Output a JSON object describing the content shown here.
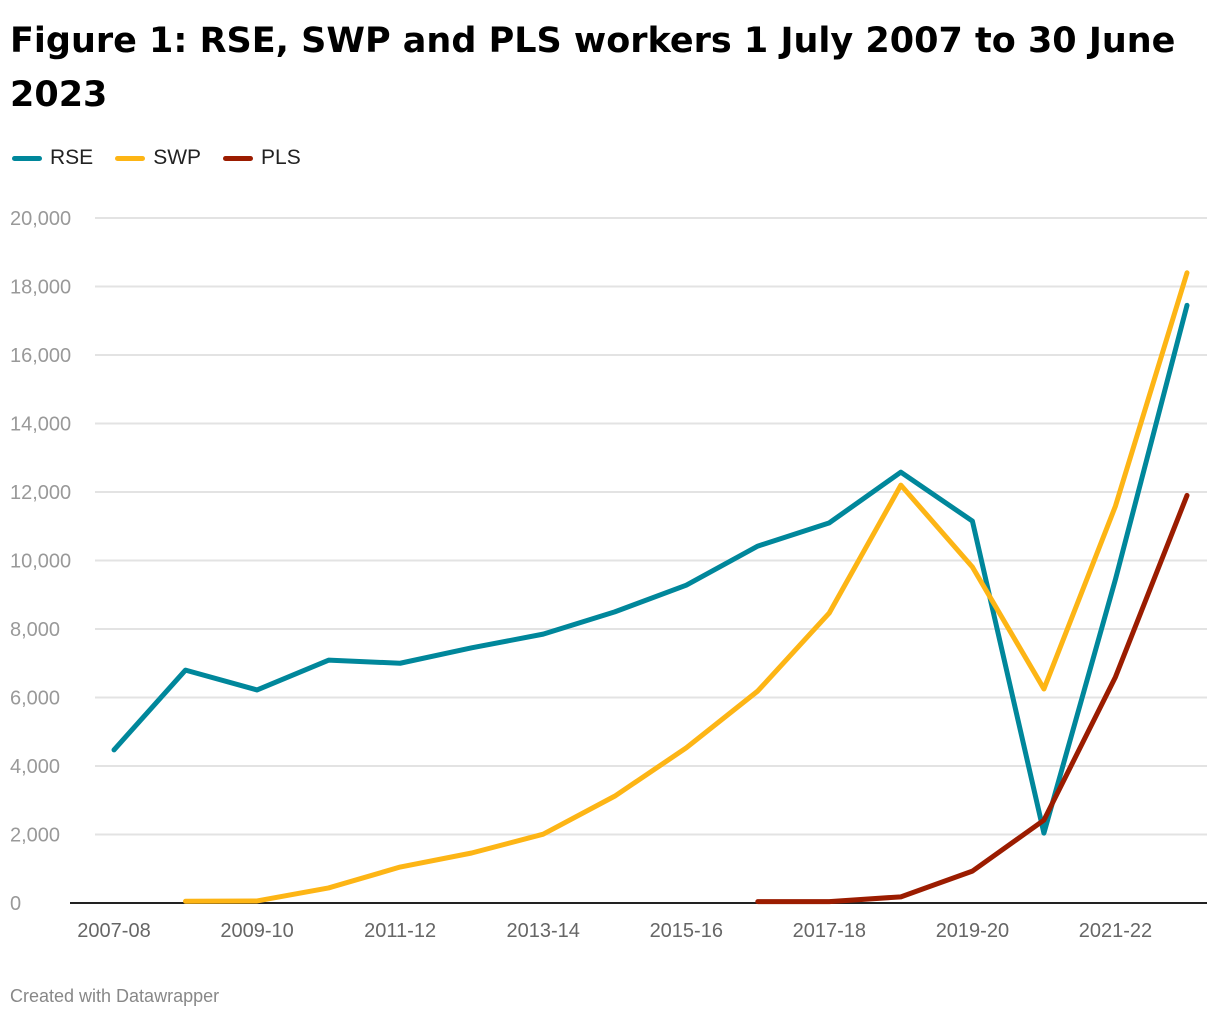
{
  "chart_data": {
    "type": "line",
    "title": "Figure 1: RSE, SWP and PLS workers 1 July 2007 to 30 June 2023",
    "x": [
      "2007-08",
      "2008-09",
      "2009-10",
      "2010-11",
      "2011-12",
      "2012-13",
      "2013-14",
      "2014-15",
      "2015-16",
      "2016-17",
      "2017-18",
      "2018-19",
      "2019-20",
      "2020-21",
      "2021-22",
      "2022-23"
    ],
    "x_tick_labels": [
      "2007-08",
      "2009-10",
      "2011-12",
      "2013-14",
      "2015-16",
      "2017-18",
      "2019-20",
      "2021-22"
    ],
    "y_ticks": [
      0,
      2000,
      4000,
      6000,
      8000,
      10000,
      12000,
      14000,
      16000,
      18000,
      20000
    ],
    "y_tick_labels": [
      "0",
      "2,000",
      "4,000",
      "6,000",
      "8,000",
      "10,000",
      "12,000",
      "14,000",
      "16,000",
      "18,000",
      "20,000"
    ],
    "ylim": [
      0,
      20000
    ],
    "grid": "horizontal",
    "legend": "top-left",
    "series": [
      {
        "name": "RSE",
        "color": "#00879b",
        "values": [
          4470,
          6800,
          6220,
          7090,
          7000,
          7450,
          7850,
          8500,
          9280,
          10420,
          11100,
          12580,
          11150,
          2040,
          9450,
          17450
        ]
      },
      {
        "name": "SWP",
        "color": "#fdb515",
        "values": [
          null,
          50,
          60,
          440,
          1050,
          1460,
          2010,
          3120,
          4530,
          6190,
          8470,
          12200,
          9810,
          6250,
          11590,
          18400
        ]
      },
      {
        "name": "PLS",
        "color": "#9b1c00",
        "values": [
          null,
          null,
          null,
          null,
          null,
          null,
          null,
          null,
          null,
          40,
          40,
          180,
          930,
          2420,
          6600,
          11900
        ]
      }
    ]
  },
  "footer": "Created with Datawrapper"
}
